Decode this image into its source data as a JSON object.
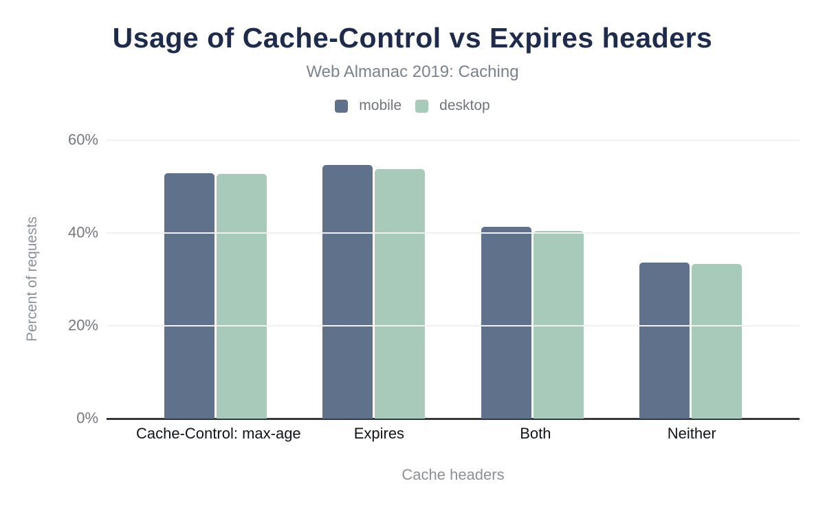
{
  "title": "Usage of Cache-Control vs Expires headers",
  "subtitle": "Web Almanac 2019: Caching",
  "legend": {
    "items": [
      {
        "label": "mobile",
        "color": "#60718b"
      },
      {
        "label": "desktop",
        "color": "#a8cabb"
      }
    ]
  },
  "chart_data": {
    "type": "bar",
    "title": "Usage of Cache-Control vs Expires headers",
    "subtitle": "Web Almanac 2019: Caching",
    "categories": [
      "Cache-Control: max-age",
      "Expires",
      "Both",
      "Neither"
    ],
    "series": [
      {
        "name": "mobile",
        "color": "#60718b",
        "values": [
          52.9,
          54.7,
          41.4,
          33.6
        ]
      },
      {
        "name": "desktop",
        "color": "#a8cabb",
        "values": [
          52.8,
          53.8,
          40.4,
          33.3
        ]
      }
    ],
    "xlabel": "Cache headers",
    "ylabel": "Percent of requests",
    "ylim": [
      0,
      60
    ],
    "y_ticks": [
      {
        "value": 60,
        "label": "60%"
      },
      {
        "value": 40,
        "label": "40%"
      },
      {
        "value": 20,
        "label": "20%"
      },
      {
        "value": 0,
        "label": "0%"
      }
    ],
    "grid": true,
    "legend_position": "top"
  },
  "colors": {
    "title": "#1f2b4c",
    "subtitle": "#7b828f",
    "axis_title": "#8c9097",
    "tick_label": "#75787e",
    "category_label": "#111418",
    "gridline": "#f1f1f1",
    "axis_line": "#373737",
    "background": "#ffffff"
  }
}
